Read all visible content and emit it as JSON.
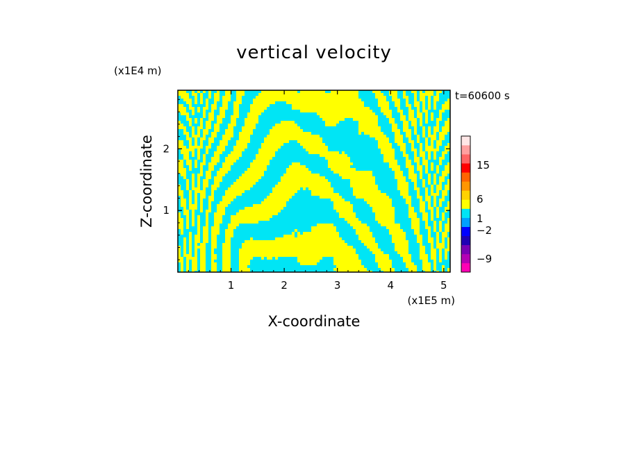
{
  "chart_data": {
    "type": "heatmap",
    "title": "vertical velocity",
    "xlabel": "X-coordinate",
    "ylabel": "Z-coordinate",
    "x_unit": "(x1E5 m)",
    "y_unit": "(x1E4 m)",
    "time_label": "t=60600 s",
    "xlim": [
      0,
      5.12
    ],
    "ylim": [
      0,
      2.95
    ],
    "x_ticks": [
      "1",
      "2",
      "3",
      "4",
      "5"
    ],
    "y_ticks": [
      "1",
      "2"
    ],
    "colorbar_labels": [
      "15",
      "6",
      "1",
      "−2",
      "−9"
    ],
    "colors": {
      "positive": "#ffff00",
      "negative": "#00e5f5",
      "colorbar": [
        "#ff00b4",
        "#b400b4",
        "#7800b4",
        "#1e00b4",
        "#0000ff",
        "#00a0ff",
        "#00e5f5",
        "#ffff00",
        "#ffd200",
        "#ff9600",
        "#ff6400",
        "#ff0000",
        "#ff6464",
        "#ffa0a0",
        "#ffe6e6"
      ]
    }
  }
}
